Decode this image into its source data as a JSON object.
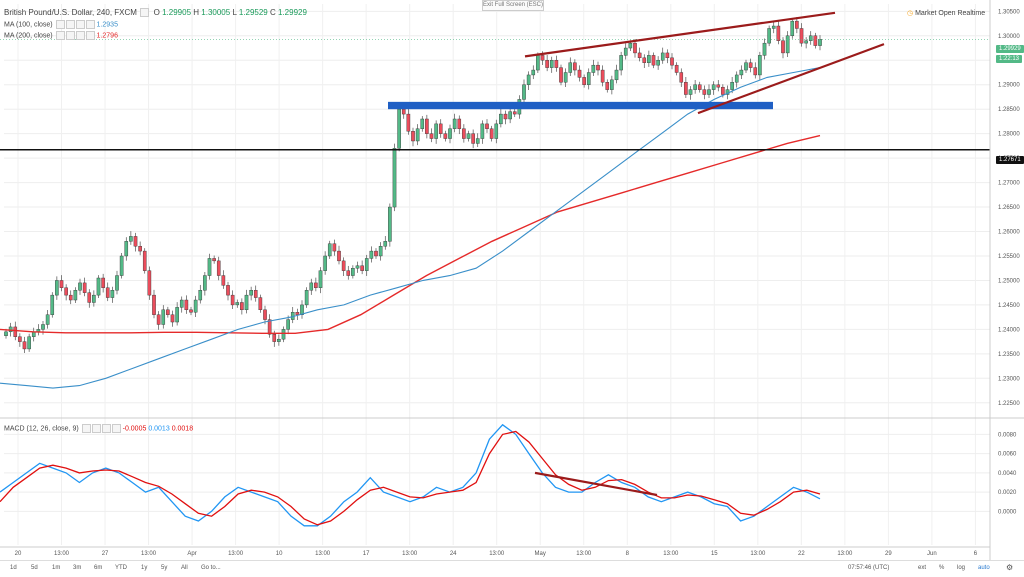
{
  "header": {
    "title": "British Pound/U.S. Dollar, 240, FXCM",
    "ohlc": {
      "o_label": "O",
      "o": "1.29905",
      "h_label": "H",
      "h": "1.30005",
      "l_label": "L",
      "l": "1.29529",
      "c_label": "C",
      "c": "1.29929"
    },
    "exit_fullscreen": "Exit Full Screen (ESC)",
    "market_status": "Market Open",
    "realtime": "Realtime"
  },
  "indicators": {
    "ma100": {
      "label": "MA (100, close)",
      "value": "1.2935",
      "color": "#3a8fc9"
    },
    "ma200": {
      "label": "MA (200, close)",
      "value": "1.2796",
      "color": "#e52a2a"
    },
    "macd": {
      "label": "MACD (12, 26, close, 9)",
      "v1": "-0.0005",
      "v2": "0.0013",
      "v3": "0.0018"
    }
  },
  "price_pills": {
    "current": "1.29929",
    "countdown": "1:22:13",
    "hline": "1.27671"
  },
  "bottom_toolbar": {
    "items": [
      "1d",
      "5d",
      "1m",
      "3m",
      "6m",
      "YTD",
      "1y",
      "5y",
      "All",
      "Go to..."
    ],
    "time": "07:57:46 (UTC)",
    "right": [
      "ext",
      "%",
      "log",
      "auto"
    ]
  },
  "colors": {
    "up": "#53b987",
    "down": "#eb4d5c",
    "support_box": "#1f5fc4",
    "trendline": "#9b1b1b",
    "macd_line": "#2196f3",
    "signal_line": "#e01010"
  },
  "chart_data": {
    "type": "line",
    "title": "British Pound/U.S. Dollar, 240, FXCM",
    "x_ticks": [
      "20",
      "13:00",
      "27",
      "13:00",
      "Apr",
      "13:00",
      "10",
      "13:00",
      "17",
      "13:00",
      "24",
      "13:00",
      "May",
      "13:00",
      "8",
      "13:00",
      "15",
      "13:00",
      "22",
      "13:00",
      "29",
      "Jun",
      "6"
    ],
    "price_axis": {
      "ticks": [
        "1.30500",
        "1.30000",
        "1.29500",
        "1.29000",
        "1.28500",
        "1.28000",
        "1.27500",
        "1.27000",
        "1.26500",
        "1.26000",
        "1.25500",
        "1.25000",
        "1.24500",
        "1.24000",
        "1.23500",
        "1.23000",
        "1.22500"
      ],
      "range": [
        1.2225,
        1.3065
      ]
    },
    "macd_axis": {
      "ticks": [
        "0.0080",
        "0.0060",
        "0.0040",
        "0.0020",
        "0.0000"
      ],
      "range": [
        -0.0035,
        0.0095
      ]
    },
    "candles_close": [
      1.2395,
      1.2405,
      1.2385,
      1.2375,
      1.236,
      1.2385,
      1.2395,
      1.24,
      1.241,
      1.243,
      1.247,
      1.25,
      1.2485,
      1.247,
      1.246,
      1.248,
      1.2495,
      1.2475,
      1.2455,
      1.247,
      1.2505,
      1.2485,
      1.2465,
      1.248,
      1.251,
      1.255,
      1.258,
      1.259,
      1.257,
      1.256,
      1.252,
      1.247,
      1.243,
      1.241,
      1.244,
      1.243,
      1.2415,
      1.2445,
      1.246,
      1.244,
      1.2435,
      1.246,
      1.248,
      1.251,
      1.2545,
      1.254,
      1.251,
      1.249,
      1.247,
      1.245,
      1.2455,
      1.244,
      1.247,
      1.248,
      1.2465,
      1.244,
      1.242,
      1.239,
      1.2375,
      1.238,
      1.24,
      1.242,
      1.2435,
      1.243,
      1.245,
      1.248,
      1.2495,
      1.2485,
      1.252,
      1.255,
      1.2575,
      1.256,
      1.254,
      1.252,
      1.251,
      1.2525,
      1.253,
      1.252,
      1.2545,
      1.256,
      1.255,
      1.257,
      1.258,
      1.265,
      1.277,
      1.285,
      1.284,
      1.2805,
      1.2785,
      1.281,
      1.283,
      1.28,
      1.279,
      1.282,
      1.28,
      1.279,
      1.281,
      1.283,
      1.281,
      1.279,
      1.28,
      1.278,
      1.279,
      1.282,
      1.281,
      1.279,
      1.282,
      1.284,
      1.283,
      1.2845,
      1.284,
      1.287,
      1.29,
      1.292,
      1.293,
      1.296,
      1.295,
      1.2935,
      1.295,
      1.2935,
      1.2905,
      1.2925,
      1.2945,
      1.293,
      1.2915,
      1.29,
      1.2925,
      1.294,
      1.293,
      1.2905,
      1.289,
      1.291,
      1.293,
      1.296,
      1.2975,
      1.2985,
      1.2965,
      1.2955,
      1.2945,
      1.296,
      1.294,
      1.295,
      1.2965,
      1.2955,
      1.294,
      1.2925,
      1.2905,
      1.288,
      1.289,
      1.29,
      1.289,
      1.288,
      1.289,
      1.29,
      1.2895,
      1.288,
      1.289,
      1.2905,
      1.292,
      1.293,
      1.2945,
      1.2935,
      1.292,
      1.296,
      1.2985,
      1.3015,
      1.302,
      1.299,
      1.2965,
      1.3,
      1.303,
      1.3015,
      1.2985,
      1.299,
      1.3,
      1.298,
      1.2993
    ],
    "ma100": [
      1.229,
      1.2285,
      1.228,
      1.2285,
      1.23,
      1.232,
      1.234,
      1.236,
      1.238,
      1.24,
      1.2415,
      1.2425,
      1.244,
      1.245,
      1.247,
      1.2485,
      1.25,
      1.251,
      1.2525,
      1.256,
      1.26,
      1.264,
      1.268,
      1.272,
      1.276,
      1.28,
      1.284,
      1.287,
      1.2895,
      1.2915,
      1.2925,
      1.2935
    ],
    "ma200": [
      1.24,
      1.2395,
      1.2393,
      1.2393,
      1.2393,
      1.2394,
      1.2394,
      1.2393,
      1.2392,
      1.2392,
      1.24,
      1.243,
      1.247,
      1.251,
      1.2545,
      1.258,
      1.261,
      1.264,
      1.266,
      1.268,
      1.27,
      1.272,
      1.274,
      1.276,
      1.278,
      1.2796
    ],
    "macd_line": [
      0.002,
      0.003,
      0.004,
      0.005,
      0.0045,
      0.004,
      0.003,
      0.004,
      0.0045,
      0.004,
      0.003,
      0.002,
      0.0025,
      0.001,
      -0.0005,
      -0.001,
      0.0,
      0.0015,
      0.0025,
      0.002,
      0.0015,
      0.001,
      -0.0005,
      -0.0015,
      -0.0015,
      -0.0005,
      0.001,
      0.002,
      0.0035,
      0.002,
      0.0015,
      0.001,
      0.0015,
      0.0025,
      0.002,
      0.0025,
      0.004,
      0.0075,
      0.009,
      0.008,
      0.006,
      0.004,
      0.0025,
      0.002,
      0.002,
      0.003,
      0.0038,
      0.003,
      0.0025,
      0.0015,
      0.001,
      0.0015,
      0.002,
      0.0015,
      0.0008,
      0.0005,
      -0.001,
      -0.0005,
      0.0005,
      0.0015,
      0.0025,
      0.002,
      0.0013
    ],
    "signal_line": [
      0.001,
      0.0025,
      0.0035,
      0.0045,
      0.0048,
      0.0045,
      0.004,
      0.0042,
      0.0043,
      0.0042,
      0.0036,
      0.003,
      0.0026,
      0.0018,
      0.0008,
      -0.0002,
      -0.0005,
      0.0005,
      0.0018,
      0.0022,
      0.002,
      0.0015,
      0.0005,
      -0.0008,
      -0.0014,
      -0.001,
      0.0,
      0.0012,
      0.0022,
      0.0025,
      0.002,
      0.0015,
      0.0014,
      0.0018,
      0.002,
      0.0022,
      0.003,
      0.006,
      0.008,
      0.0083,
      0.0072,
      0.0055,
      0.0038,
      0.0028,
      0.0022,
      0.0025,
      0.0032,
      0.0033,
      0.0028,
      0.002,
      0.0014,
      0.0014,
      0.0017,
      0.0016,
      0.0012,
      0.0008,
      -0.0002,
      -0.0004,
      0.0002,
      0.001,
      0.002,
      0.0022,
      0.0018
    ],
    "support_zone": [
      1.285,
      1.2865
    ],
    "horizontal_level": 1.27671,
    "grid": true
  }
}
